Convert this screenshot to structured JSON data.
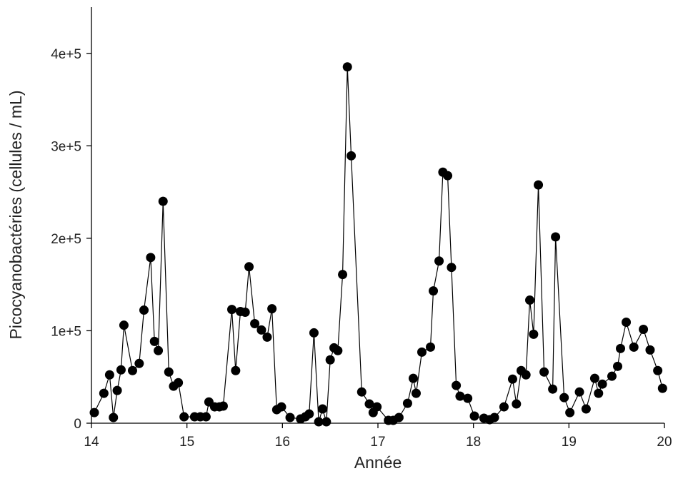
{
  "chart_data": {
    "type": "line",
    "markers": true,
    "color": "#000000",
    "x_label": "Année",
    "y_label": "Picocyanobactéries (cellules / mL)",
    "xlim": [
      14,
      20
    ],
    "xticks": [
      14,
      15,
      16,
      17,
      18,
      19,
      20
    ],
    "ylim": [
      0,
      450000
    ],
    "yticks": [
      0,
      {
        "value": 100000,
        "label": "1e+5"
      },
      {
        "value": 200000,
        "label": "2e+5"
      },
      {
        "value": 300000,
        "label": "3e+5"
      },
      {
        "value": 400000,
        "label": "4e+5"
      }
    ],
    "x": [
      14.03,
      14.13,
      14.19,
      14.23,
      14.27,
      14.31,
      14.34,
      14.43,
      14.5,
      14.55,
      14.62,
      14.66,
      14.7,
      14.75,
      14.81,
      14.86,
      14.91,
      14.97,
      15.08,
      15.14,
      15.2,
      15.23,
      15.29,
      15.34,
      15.38,
      15.47,
      15.51,
      15.56,
      15.61,
      15.65,
      15.71,
      15.78,
      15.84,
      15.89,
      15.94,
      15.99,
      16.08,
      16.19,
      16.24,
      16.28,
      16.33,
      16.38,
      16.42,
      16.46,
      16.5,
      16.54,
      16.58,
      16.63,
      16.68,
      16.72,
      16.83,
      16.91,
      16.95,
      16.99,
      17.11,
      17.16,
      17.22,
      17.31,
      17.37,
      17.4,
      17.46,
      17.55,
      17.58,
      17.64,
      17.68,
      17.73,
      17.77,
      17.82,
      17.86,
      17.94,
      18.01,
      18.11,
      18.17,
      18.22,
      18.32,
      18.41,
      18.45,
      18.5,
      18.55,
      18.59,
      18.63,
      18.68,
      18.74,
      18.83,
      18.86,
      18.95,
      19.01,
      19.11,
      19.18,
      19.27,
      19.31,
      19.35,
      19.45,
      19.51,
      19.54,
      19.6,
      19.68,
      19.78,
      19.85,
      19.93,
      19.98
    ],
    "values": [
      11500,
      32300,
      52300,
      6200,
      35400,
      57700,
      106000,
      56900,
      64600,
      122300,
      179200,
      88500,
      78500,
      240000,
      55400,
      40000,
      43800,
      6900,
      6900,
      6900,
      6900,
      23000,
      17700,
      17700,
      18500,
      123000,
      56900,
      120800,
      120000,
      169200,
      107700,
      100800,
      93100,
      123800,
      14600,
      17700,
      6200,
      4600,
      6900,
      10000,
      97700,
      1500,
      15400,
      1500,
      68500,
      81500,
      78500,
      160800,
      385400,
      289200,
      33800,
      20800,
      11500,
      17700,
      3100,
      3100,
      6200,
      21500,
      48500,
      32300,
      76900,
      82300,
      143100,
      175400,
      271500,
      267700,
      168500,
      40800,
      29200,
      26900,
      7700,
      5400,
      3800,
      6200,
      17700,
      47700,
      20800,
      56900,
      52300,
      133100,
      96200,
      257700,
      55400,
      36900,
      201500,
      27700,
      11500,
      33800,
      15400,
      48500,
      32300,
      42300,
      50800,
      61500,
      80800,
      109200,
      82300,
      101500,
      79200,
      56900,
      37700
    ]
  }
}
